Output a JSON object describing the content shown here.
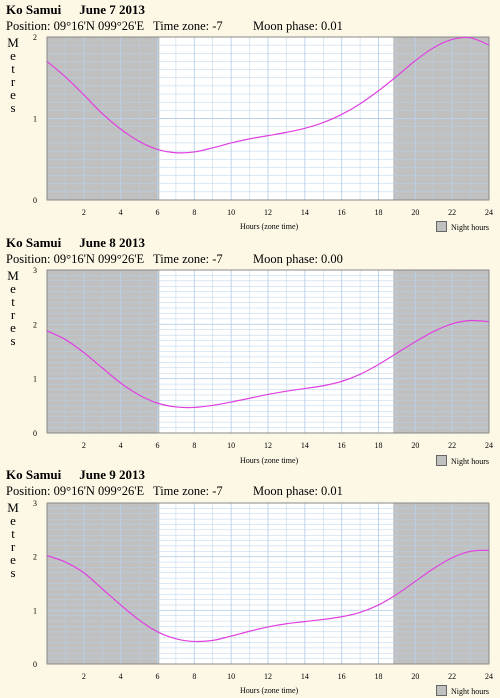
{
  "panels": [
    {
      "place": "Ko Samui",
      "date": "June 7 2013",
      "position": "Position: 09°16'N 099°26'E",
      "timezone": "Time zone: -7",
      "moon": "Moon phase: 0.01",
      "ylabel_letters": [
        "M",
        "e",
        "t",
        "r",
        "e",
        "s"
      ],
      "xlabel": "Hours (zone time)",
      "legend": "Night hours"
    },
    {
      "place": "Ko Samui",
      "date": "June 8 2013",
      "position": "Position: 09°16'N 099°26'E",
      "timezone": "Time zone: -7",
      "moon": "Moon phase: 0.00",
      "ylabel_letters": [
        "M",
        "e",
        "t",
        "r",
        "e",
        "s"
      ],
      "xlabel": "Hours (zone time)",
      "legend": "Night hours"
    },
    {
      "place": "Ko Samui",
      "date": "June 9 2013",
      "position": "Position: 09°16'N 099°26'E",
      "timezone": "Time zone: -7",
      "moon": "Moon phase: 0.01",
      "ylabel_letters": [
        "M",
        "e",
        "t",
        "r",
        "e",
        "s"
      ],
      "xlabel": "Hours (zone time)",
      "legend": "Night hours"
    }
  ],
  "chart_data": [
    {
      "type": "line",
      "xlabel": "Hours (zone time)",
      "ylabel": "Metres",
      "xlim": [
        0,
        24
      ],
      "ylim": [
        0,
        2
      ],
      "xticks": [
        "2",
        "4",
        "6",
        "8",
        "10",
        "12",
        "14",
        "16",
        "18",
        "20",
        "22",
        "24"
      ],
      "yticks": [
        "0",
        "1",
        "2"
      ],
      "night_hours": [
        [
          0,
          6.1
        ],
        [
          18.8,
          24
        ]
      ],
      "grid": true,
      "colors": {
        "curve": "#e040e0",
        "night": "#c0c0c0",
        "grid": "#b8d0e8"
      },
      "series": [
        {
          "x": [
            0,
            1,
            2,
            3,
            4,
            5,
            6,
            7,
            8,
            9,
            10,
            11,
            12,
            13,
            14,
            15,
            16,
            17,
            18,
            19,
            20,
            21,
            22,
            23,
            24
          ],
          "values": [
            1.7,
            1.51,
            1.29,
            1.06,
            0.87,
            0.72,
            0.62,
            0.58,
            0.59,
            0.64,
            0.7,
            0.75,
            0.79,
            0.83,
            0.88,
            0.95,
            1.05,
            1.18,
            1.34,
            1.52,
            1.71,
            1.87,
            1.97,
            1.99,
            1.9
          ]
        }
      ]
    },
    {
      "type": "line",
      "xlabel": "Hours (zone time)",
      "ylabel": "Metres",
      "xlim": [
        0,
        24
      ],
      "ylim": [
        0,
        3
      ],
      "xticks": [
        "2",
        "4",
        "6",
        "8",
        "10",
        "12",
        "14",
        "16",
        "18",
        "20",
        "22",
        "24"
      ],
      "yticks": [
        "0",
        "1",
        "2",
        "3"
      ],
      "night_hours": [
        [
          0,
          6.1
        ],
        [
          18.8,
          24
        ]
      ],
      "grid": true,
      "colors": {
        "curve": "#e040e0",
        "night": "#c0c0c0",
        "grid": "#b8d0e8"
      },
      "series": [
        {
          "x": [
            0,
            1,
            2,
            3,
            4,
            5,
            6,
            7,
            8,
            9,
            10,
            11,
            12,
            13,
            14,
            15,
            16,
            17,
            18,
            19,
            20,
            21,
            22,
            23,
            24
          ],
          "values": [
            1.88,
            1.72,
            1.48,
            1.2,
            0.92,
            0.7,
            0.55,
            0.48,
            0.47,
            0.51,
            0.57,
            0.64,
            0.71,
            0.77,
            0.82,
            0.87,
            0.95,
            1.08,
            1.26,
            1.47,
            1.68,
            1.87,
            2.01,
            2.07,
            2.05
          ]
        }
      ]
    },
    {
      "type": "line",
      "xlabel": "Hours (zone time)",
      "ylabel": "Metres",
      "xlim": [
        0,
        24
      ],
      "ylim": [
        0,
        3
      ],
      "xticks": [
        "2",
        "4",
        "6",
        "8",
        "10",
        "12",
        "14",
        "16",
        "18",
        "20",
        "22",
        "24"
      ],
      "yticks": [
        "0",
        "1",
        "2",
        "3"
      ],
      "night_hours": [
        [
          0,
          6.1
        ],
        [
          18.8,
          24
        ]
      ],
      "grid": true,
      "colors": {
        "curve": "#e040e0",
        "night": "#c0c0c0",
        "grid": "#b8d0e8"
      },
      "series": [
        {
          "x": [
            0,
            1,
            2,
            3,
            4,
            5,
            6,
            7,
            8,
            9,
            10,
            11,
            12,
            13,
            14,
            15,
            16,
            17,
            18,
            19,
            20,
            21,
            22,
            23,
            24
          ],
          "values": [
            2.02,
            1.9,
            1.7,
            1.4,
            1.1,
            0.82,
            0.6,
            0.47,
            0.42,
            0.44,
            0.52,
            0.61,
            0.69,
            0.75,
            0.79,
            0.83,
            0.88,
            0.96,
            1.1,
            1.3,
            1.54,
            1.78,
            1.98,
            2.1,
            2.12
          ]
        }
      ]
    }
  ]
}
